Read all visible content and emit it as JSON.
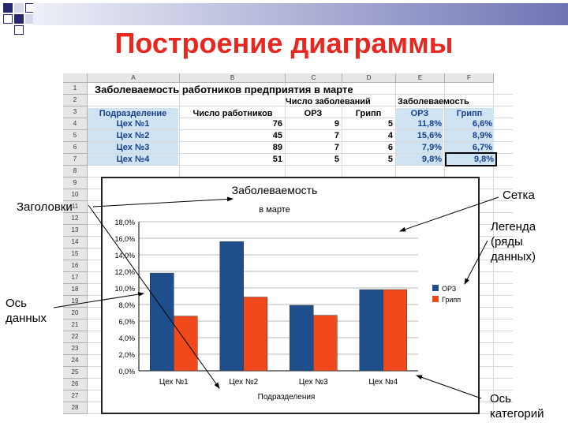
{
  "slide": {
    "title": "Построение диаграммы"
  },
  "sheet": {
    "columns": [
      "A",
      "B",
      "C",
      "D",
      "E",
      "F"
    ],
    "rows": [
      "1",
      "2",
      "3",
      "4",
      "5",
      "6",
      "7",
      "8",
      "9",
      "10",
      "11",
      "12",
      "13",
      "14",
      "15",
      "16",
      "17",
      "18",
      "19",
      "20",
      "21",
      "22",
      "23",
      "24",
      "25",
      "26",
      "27",
      "28"
    ],
    "title": "Заболеваемость работников предприятия в марте",
    "header_row2": {
      "c": "Число заболеваний",
      "e": "Заболеваемость"
    },
    "header_row3": {
      "a": "Подразделение",
      "b": "Число работников",
      "c": "ОРЗ",
      "d": "Грипп",
      "e": "ОРЗ",
      "f": "Грипп"
    },
    "data": [
      {
        "a": "Цех №1",
        "b": "76",
        "c": "9",
        "d": "5",
        "e": "11,8%",
        "f": "6,6%"
      },
      {
        "a": "Цех №2",
        "b": "45",
        "c": "7",
        "d": "4",
        "e": "15,6%",
        "f": "8,9%"
      },
      {
        "a": "Цех №3",
        "b": "89",
        "c": "7",
        "d": "6",
        "e": "7,9%",
        "f": "6,7%"
      },
      {
        "a": "Цех №4",
        "b": "51",
        "c": "5",
        "d": "5",
        "e": "9,8%",
        "f": "9,8%"
      }
    ]
  },
  "chart_data": {
    "type": "bar",
    "title": "Заболеваемость",
    "subtitle": "в марте",
    "xlabel": "Подразделения",
    "ylabel": "",
    "categories": [
      "Цех №1",
      "Цех №2",
      "Цех №3",
      "Цех №4"
    ],
    "series": [
      {
        "name": "ОРЗ",
        "values": [
          11.8,
          15.6,
          7.9,
          9.8
        ],
        "color": "#1f4e8c"
      },
      {
        "name": "Грипп",
        "values": [
          6.6,
          8.9,
          6.7,
          9.8
        ],
        "color": "#f04a1c"
      }
    ],
    "ylim": [
      0,
      18
    ],
    "yticks": [
      "0,0%",
      "2,0%",
      "4,0%",
      "6,0%",
      "8,0%",
      "10,0%",
      "12,0%",
      "14,0%",
      "16,0%",
      "18,0%"
    ],
    "grid": true,
    "legend": "right"
  },
  "annotations": {
    "headers": "Заголовки",
    "grid": "Сетка",
    "legend_l1": "Легенда",
    "legend_l2": "(ряды",
    "legend_l3": "данных)",
    "data_axis_l1": "Ось",
    "data_axis_l2": "данных",
    "cat_axis_l1": "Ось",
    "cat_axis_l2": "категорий"
  },
  "colors": {
    "title": "#e8281e",
    "bullet": "#27286b",
    "sheet_highlight": "#cfe3f3"
  }
}
